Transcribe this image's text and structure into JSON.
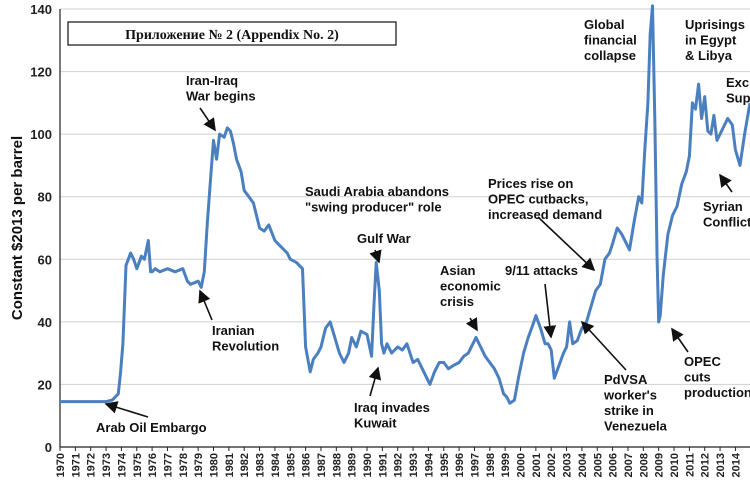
{
  "chart_data": {
    "type": "line",
    "title_box": "Приложение № 2 (Appendix No. 2)",
    "ylabel": "Constant $2013 per barrel",
    "xlabel": "",
    "ylim": [
      0,
      140
    ],
    "yticks": [
      0,
      20,
      40,
      60,
      80,
      100,
      120,
      140
    ],
    "xlim": [
      1970,
      2014.95
    ],
    "xticks": [
      "1970",
      "1971",
      "1972",
      "1973",
      "1974",
      "1975",
      "1976",
      "1977",
      "1978",
      "1979",
      "1980",
      "1981",
      "1982",
      "1983",
      "1984",
      "1985",
      "1986",
      "1987",
      "1988",
      "1989",
      "1990",
      "1991",
      "1992",
      "1993",
      "1994",
      "1995",
      "1996",
      "1997",
      "1998",
      "1999",
      "2000",
      "2001",
      "2002",
      "2003",
      "2004",
      "2005",
      "2006",
      "2007",
      "2008",
      "2009",
      "2010",
      "2011",
      "2012",
      "2013",
      "2014"
    ],
    "grid": "horizontal",
    "line_color": "#4a7fc0",
    "series": [
      {
        "x": [
          1970.0,
          1971.0,
          1972.0,
          1973.0,
          1973.4,
          1973.6,
          1973.8,
          1973.95,
          1974.1,
          1974.3,
          1974.6,
          1974.8,
          1975.0,
          1975.3,
          1975.5,
          1975.75,
          1975.9,
          1976.0,
          1976.2,
          1976.5,
          1977.0,
          1977.5,
          1978.0,
          1978.3,
          1978.5,
          1979.0,
          1979.2,
          1979.4,
          1979.6,
          1979.8,
          1980.0,
          1980.2,
          1980.4,
          1980.7,
          1980.9,
          1981.1,
          1981.3,
          1981.5,
          1981.8,
          1982.0,
          1982.3,
          1982.6,
          1983.0,
          1983.3,
          1983.6,
          1984.0,
          1984.4,
          1984.8,
          1985.0,
          1985.4,
          1985.8,
          1986.0,
          1986.15,
          1986.3,
          1986.5,
          1986.8,
          1987.0,
          1987.3,
          1987.6,
          1987.9,
          1988.2,
          1988.5,
          1988.8,
          1989.0,
          1989.3,
          1989.6,
          1990.0,
          1990.3,
          1990.45,
          1990.6,
          1990.8,
          1990.95,
          1991.1,
          1991.3,
          1991.6,
          1992.0,
          1992.3,
          1992.6,
          1993.0,
          1993.3,
          1993.6,
          1993.9,
          1994.1,
          1994.4,
          1994.7,
          1995.0,
          1995.3,
          1995.6,
          1996.0,
          1996.3,
          1996.6,
          1996.9,
          1997.1,
          1997.4,
          1997.7,
          1998.0,
          1998.3,
          1998.6,
          1998.9,
          1999.1,
          1999.3,
          1999.6,
          1999.9,
          2000.2,
          2000.5,
          2000.8,
          2001.0,
          2001.3,
          2001.6,
          2001.8,
          2002.0,
          2002.2,
          2002.5,
          2002.8,
          2003.0,
          2003.2,
          2003.4,
          2003.7,
          2004.0,
          2004.3,
          2004.6,
          2004.9,
          2005.2,
          2005.5,
          2005.8,
          2006.0,
          2006.3,
          2006.6,
          2006.9,
          2007.1,
          2007.4,
          2007.7,
          2007.9,
          2008.1,
          2008.3,
          2008.45,
          2008.6,
          2008.75,
          2008.9,
          2009.0,
          2009.1,
          2009.3,
          2009.6,
          2009.9,
          2010.2,
          2010.5,
          2010.8,
          2011.0,
          2011.2,
          2011.4,
          2011.6,
          2011.8,
          2012.0,
          2012.2,
          2012.4,
          2012.6,
          2012.8,
          2013.0,
          2013.2,
          2013.5,
          2013.8,
          2014.0,
          2014.3,
          2014.6,
          2014.95
        ],
        "y": [
          14.5,
          14.5,
          14.5,
          14.5,
          15,
          16,
          17,
          24,
          33,
          58,
          62,
          60,
          57,
          61,
          60,
          66,
          56,
          56,
          57,
          56,
          57,
          56,
          57,
          53,
          52,
          53,
          51,
          56,
          72,
          85,
          98,
          92,
          100,
          99,
          102,
          101,
          97,
          92,
          88,
          82,
          80,
          78,
          70,
          69,
          71,
          66,
          64,
          62,
          60,
          59,
          57,
          32,
          28,
          24,
          28,
          30,
          32,
          38,
          40,
          35,
          30,
          27,
          30,
          35,
          32,
          37,
          36,
          29,
          45,
          59,
          50,
          33,
          30,
          33,
          30,
          32,
          31,
          33,
          27,
          28,
          25,
          22,
          20,
          24,
          27,
          27,
          25,
          26,
          27,
          29,
          30,
          33,
          35,
          32,
          29,
          27,
          25,
          22,
          17,
          16,
          14,
          15,
          23,
          30,
          35,
          39,
          42,
          38,
          33,
          33,
          31,
          22,
          26,
          30,
          32,
          40,
          33,
          34,
          38,
          40,
          45,
          50,
          52,
          60,
          62,
          65,
          70,
          68,
          65,
          63,
          72,
          80,
          78,
          95,
          110,
          132,
          141,
          105,
          60,
          40,
          42,
          55,
          68,
          74,
          77,
          84,
          88,
          93,
          110,
          108,
          116,
          105,
          112,
          101,
          100,
          106,
          98,
          100,
          102,
          105,
          103,
          95,
          90,
          100,
          110
        ]
      }
    ],
    "annotations": [
      {
        "lines": [
          "Arab Oil Embargo"
        ]
      },
      {
        "lines": [
          "Iran-Iraq",
          "War begins"
        ]
      },
      {
        "lines": [
          "Iranian",
          "Revolution"
        ]
      },
      {
        "lines": [
          "Saudi Arabia abandons",
          "\"swing producer\" role"
        ]
      },
      {
        "lines": [
          "Gulf War"
        ]
      },
      {
        "lines": [
          "Iraq invades",
          "Kuwait"
        ]
      },
      {
        "lines": [
          "Asian",
          "economic",
          "crisis"
        ]
      },
      {
        "lines": [
          "9/11 attacks"
        ]
      },
      {
        "lines": [
          "Prices rise on",
          "OPEC cutbacks,",
          "increased demand"
        ]
      },
      {
        "lines": [
          "PdVSA",
          "worker's",
          "strike in",
          "Venezuela"
        ]
      },
      {
        "lines": [
          "Global",
          "financial",
          "collapse"
        ]
      },
      {
        "lines": [
          "OPEC",
          "cuts",
          "production"
        ]
      },
      {
        "lines": [
          "Uprisings",
          "in Egypt",
          "& Libya"
        ]
      },
      {
        "lines": [
          "Exc",
          "Sup"
        ]
      },
      {
        "lines": [
          "Syrian",
          "Conflict"
        ]
      }
    ]
  }
}
